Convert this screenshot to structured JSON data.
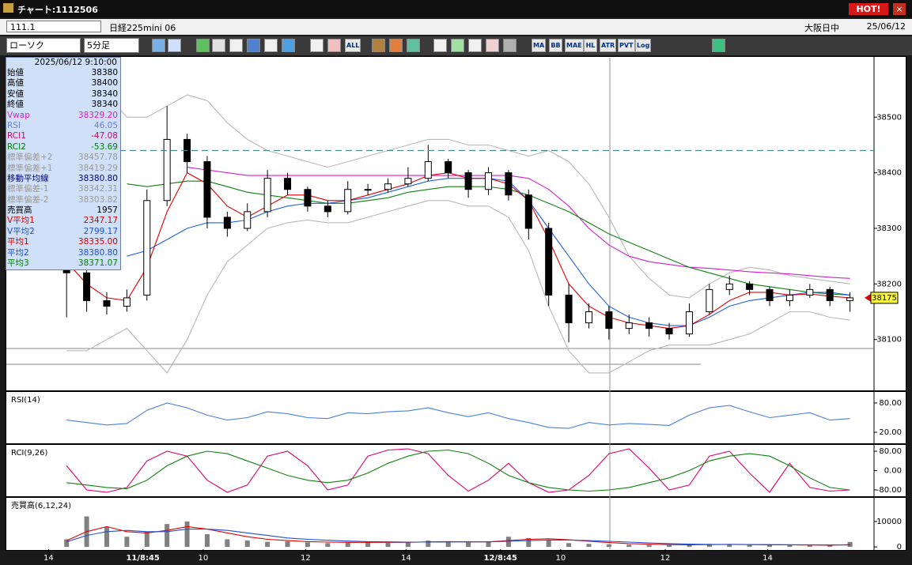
{
  "window": {
    "title": "チャート:1112506",
    "hot": "HOT!"
  },
  "header": {
    "code": "111.1",
    "name": "日経225mini 06",
    "session": "大阪日中",
    "date": "25/06/12"
  },
  "toolbar": {
    "chart_type": "ローソク",
    "interval": "5分足",
    "buttons": [
      "ALL",
      "MA",
      "BB",
      "MAE",
      "HL",
      "ATR",
      "PVT",
      "Log"
    ]
  },
  "info_panel": {
    "datetime": "2025/06/12 9:10:00",
    "rows": [
      {
        "label": "始値",
        "value": "38380",
        "color": "#000000"
      },
      {
        "label": "高値",
        "value": "38400",
        "color": "#000000"
      },
      {
        "label": "安値",
        "value": "38340",
        "color": "#000000"
      },
      {
        "label": "終値",
        "value": "38340",
        "color": "#000000"
      },
      {
        "label": "Vwap",
        "value": "38329.20",
        "color": "#d020d0"
      },
      {
        "label": "RSI",
        "value": "46.05",
        "color": "#6a7fd8"
      },
      {
        "label": "RCI1",
        "value": "-47.08",
        "color": "#d0006a"
      },
      {
        "label": "RCI2",
        "value": "-53.69",
        "color": "#008000"
      },
      {
        "label": "標準偏差+2",
        "value": "38457.78",
        "color": "#9a9a9a"
      },
      {
        "label": "標準偏差+1",
        "value": "38419.29",
        "color": "#9a9a9a"
      },
      {
        "label": "移動平均線",
        "value": "38380.80",
        "color": "#000080"
      },
      {
        "label": "標準偏差-1",
        "value": "38342.31",
        "color": "#9a9a9a"
      },
      {
        "label": "標準偏差-2",
        "value": "38303.82",
        "color": "#9a9a9a"
      },
      {
        "label": "売買高",
        "value": "1957",
        "color": "#000000"
      },
      {
        "label": "V平均1",
        "value": "2347.17",
        "color": "#d00000"
      },
      {
        "label": "V平均2",
        "value": "2799.17",
        "color": "#2050d0"
      },
      {
        "label": "平均1",
        "value": "38335.00",
        "color": "#d00000"
      },
      {
        "label": "平均2",
        "value": "38380.80",
        "color": "#2050d0"
      },
      {
        "label": "平均3",
        "value": "38371.07",
        "color": "#008000"
      }
    ]
  },
  "chart_data": [
    {
      "type": "candlestick",
      "xlim": [
        -3,
        40
      ],
      "xticks": [
        {
          "value": -0.9,
          "label": "14"
        },
        {
          "value": 3.8,
          "label": "11/8:45"
        },
        {
          "value": 6.8,
          "label": "10"
        },
        {
          "value": 11.9,
          "label": "12"
        },
        {
          "value": 16.9,
          "label": "14"
        },
        {
          "value": 21.6,
          "label": "12/8:45"
        },
        {
          "value": 24.6,
          "label": "10"
        },
        {
          "value": 29.8,
          "label": "12"
        },
        {
          "value": 34.9,
          "label": "14"
        }
      ],
      "ylim": [
        38010,
        38607
      ],
      "yticks": [
        38100,
        38200,
        38300,
        38400,
        38500
      ],
      "up_color": "#ffffff",
      "down_color": "#000000",
      "open": [
        38250,
        38220,
        38170,
        38160,
        38180,
        38350,
        38460,
        38420,
        38320,
        38300,
        38330,
        38390,
        38370,
        38340,
        38330,
        38370,
        38370,
        38380,
        38390,
        38420,
        38400,
        38370,
        38400,
        38360,
        38300,
        38180,
        38130,
        38150,
        38120,
        38130,
        38120,
        38110,
        38150,
        38190,
        38200,
        38190,
        38170,
        38180,
        38190,
        38170
      ],
      "high": [
        38270,
        38230,
        38185,
        38190,
        38370,
        38520,
        38470,
        38430,
        38330,
        38345,
        38405,
        38400,
        38375,
        38350,
        38385,
        38380,
        38390,
        38410,
        38450,
        38425,
        38405,
        38410,
        38405,
        38370,
        38310,
        38200,
        38165,
        38160,
        38145,
        38140,
        38130,
        38165,
        38200,
        38215,
        38205,
        38195,
        38190,
        38200,
        38195,
        38185
      ],
      "low": [
        38140,
        38150,
        38145,
        38150,
        38170,
        38340,
        38400,
        38300,
        38285,
        38295,
        38320,
        38360,
        38330,
        38320,
        38325,
        38360,
        38365,
        38375,
        38385,
        38390,
        38355,
        38360,
        38350,
        38280,
        38160,
        38095,
        38120,
        38100,
        38110,
        38105,
        38100,
        38105,
        38145,
        38180,
        38180,
        38160,
        38160,
        38175,
        38160,
        38150
      ],
      "close": [
        38220,
        38170,
        38160,
        38175,
        38350,
        38460,
        38420,
        38320,
        38300,
        38330,
        38390,
        38370,
        38340,
        38330,
        38370,
        38370,
        38380,
        38390,
        38420,
        38400,
        38370,
        38400,
        38360,
        38300,
        38180,
        38130,
        38150,
        38120,
        38130,
        38120,
        38110,
        38150,
        38190,
        38200,
        38190,
        38170,
        38180,
        38190,
        38170,
        38175
      ],
      "series": [
        {
          "color": "#b8b8b8",
          "values": [
            38500,
            38560,
            38540,
            38500,
            38500,
            38520,
            38540,
            38530,
            38490,
            38460,
            38440,
            38430,
            38420,
            38410,
            38420,
            38430,
            38440,
            38450,
            38460,
            38460,
            38450,
            38450,
            38440,
            38430,
            38440,
            38420,
            38380,
            38320,
            38250,
            38210,
            38180,
            38175,
            38200,
            38220,
            38230,
            38225,
            38215,
            38210,
            38205,
            38200
          ]
        },
        {
          "color": "#b8b8b8",
          "values": [
            38080,
            38080,
            38100,
            38120,
            38080,
            38040,
            38100,
            38180,
            38240,
            38270,
            38300,
            38310,
            38315,
            38310,
            38310,
            38320,
            38330,
            38340,
            38350,
            38350,
            38340,
            38340,
            38320,
            38260,
            38160,
            38080,
            38040,
            38040,
            38060,
            38080,
            38090,
            38090,
            38090,
            38100,
            38110,
            38130,
            38150,
            38150,
            38140,
            38135
          ]
        },
        {
          "color": "#d020d0",
          "values": [
            null,
            null,
            null,
            null,
            null,
            null,
            38410,
            38405,
            38400,
            38395,
            38395,
            38395,
            38395,
            38395,
            38395,
            38395,
            38395,
            38395,
            38395,
            38395,
            38395,
            38395,
            38395,
            38390,
            38370,
            38340,
            38300,
            38270,
            38250,
            38240,
            38235,
            38230,
            38228,
            38225,
            38222,
            38220,
            38218,
            38215,
            38212,
            38210
          ]
        },
        {
          "color": "#108010",
          "values": [
            null,
            null,
            null,
            38380,
            38375,
            38380,
            38385,
            38385,
            38375,
            38365,
            38360,
            38355,
            38350,
            38345,
            38345,
            38350,
            38355,
            38365,
            38370,
            38375,
            38375,
            38375,
            38370,
            38360,
            38345,
            38330,
            38310,
            38290,
            38275,
            38260,
            38245,
            38230,
            38220,
            38210,
            38200,
            38195,
            38190,
            38185,
            38182,
            38180
          ]
        },
        {
          "color": "#2060e0",
          "values": [
            null,
            null,
            null,
            38250,
            38260,
            38280,
            38300,
            38310,
            38310,
            38315,
            38330,
            38340,
            38345,
            38345,
            38350,
            38355,
            38365,
            38375,
            38385,
            38390,
            38390,
            38390,
            38385,
            38350,
            38300,
            38250,
            38200,
            38160,
            38140,
            38130,
            38125,
            38125,
            38140,
            38160,
            38170,
            38175,
            38180,
            38185,
            38185,
            38180
          ]
        },
        {
          "color": "#e00000",
          "values": [
            38240,
            38200,
            38175,
            38170,
            38230,
            38330,
            38400,
            38380,
            38340,
            38320,
            38340,
            38360,
            38360,
            38350,
            38350,
            38360,
            38370,
            38380,
            38395,
            38400,
            38390,
            38390,
            38380,
            38350,
            38280,
            38200,
            38160,
            38140,
            38130,
            38125,
            38120,
            38125,
            38145,
            38170,
            38185,
            38185,
            38180,
            38182,
            38178,
            38175
          ]
        }
      ],
      "hline": 38440,
      "hline_color": "#4a8a8a",
      "last_price": 38175
    },
    {
      "type": "line",
      "title": "RSI(14)",
      "ylim": [
        -1,
        101
      ],
      "yticks": [
        {
          "value": 80,
          "label": "80.00"
        },
        {
          "value": 20,
          "label": "20.00"
        }
      ],
      "series": [
        {
          "color": "#4a80d8",
          "values": [
            45,
            40,
            35,
            38,
            65,
            80,
            70,
            55,
            45,
            50,
            62,
            58,
            50,
            48,
            60,
            58,
            62,
            64,
            70,
            60,
            52,
            60,
            48,
            40,
            30,
            28,
            40,
            35,
            38,
            36,
            34,
            55,
            70,
            75,
            62,
            50,
            55,
            60,
            45,
            48
          ]
        }
      ]
    },
    {
      "type": "line",
      "title": "RCI(9,26)",
      "ylim": [
        -103,
        103
      ],
      "yticks": [
        {
          "value": 80,
          "label": "80.00"
        },
        {
          "value": 0,
          "label": "0.00"
        },
        {
          "value": -80,
          "label": "-80.00"
        }
      ],
      "series": [
        {
          "color": "#e0006a",
          "values": [
            20,
            -80,
            -90,
            -70,
            40,
            80,
            60,
            -40,
            -90,
            -60,
            60,
            80,
            20,
            -80,
            -60,
            60,
            85,
            90,
            70,
            -20,
            -85,
            -40,
            30,
            -50,
            -90,
            -80,
            -20,
            70,
            90,
            10,
            -80,
            -60,
            60,
            80,
            -10,
            -90,
            30,
            -70,
            -85,
            -80
          ]
        },
        {
          "color": "#108010",
          "values": [
            -50,
            -60,
            -70,
            -75,
            -40,
            20,
            60,
            80,
            70,
            40,
            10,
            -20,
            -40,
            -50,
            -40,
            -10,
            30,
            60,
            80,
            85,
            70,
            30,
            -20,
            -50,
            -70,
            -80,
            -85,
            -80,
            -70,
            -50,
            -30,
            0,
            40,
            60,
            70,
            60,
            20,
            -30,
            -70,
            -80
          ]
        }
      ]
    },
    {
      "type": "bar",
      "title": "売買高(6,12,24)",
      "ylim": [
        -900,
        19000
      ],
      "yticks": [
        10000,
        0
      ],
      "color": "#808080",
      "values": [
        3000,
        12000,
        8000,
        4000,
        6000,
        9000,
        10000,
        5000,
        3000,
        2500,
        2000,
        2200,
        1800,
        1500,
        1700,
        2000,
        1600,
        1800,
        2500,
        2000,
        1800,
        2200,
        4000,
        3500,
        2500,
        1500,
        1200,
        1000,
        900,
        800,
        700,
        800,
        1200,
        1000,
        800,
        700,
        900,
        600,
        500,
        1957
      ],
      "series": [
        {
          "color": "#e00000",
          "values": [
            2500,
            6000,
            8000,
            6000,
            5500,
            6500,
            8000,
            7000,
            5500,
            4000,
            3000,
            2500,
            2100,
            1900,
            1800,
            1800,
            1800,
            1800,
            2000,
            2100,
            2000,
            2000,
            2500,
            3000,
            3200,
            2800,
            2200,
            1700,
            1300,
            1100,
            900,
            850,
            900,
            1000,
            950,
            850,
            800,
            750,
            650,
            900
          ]
        },
        {
          "color": "#2050d0",
          "values": [
            2000,
            4500,
            6000,
            6500,
            6000,
            6000,
            7000,
            7000,
            6500,
            5500,
            4500,
            3500,
            3000,
            2600,
            2300,
            2100,
            2000,
            1900,
            1900,
            1950,
            2000,
            2000,
            2200,
            2500,
            2700,
            2700,
            2500,
            2200,
            1900,
            1600,
            1300,
            1100,
            1000,
            1000,
            950,
            900,
            870,
            830,
            780,
            750
          ]
        }
      ]
    }
  ]
}
